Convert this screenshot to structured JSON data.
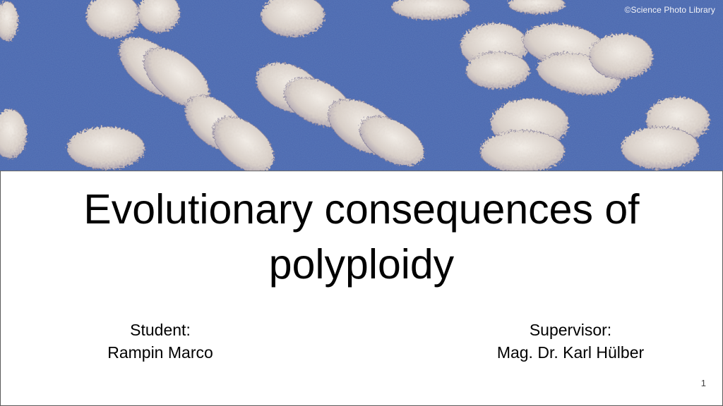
{
  "slide": {
    "image_credit": "©Science Photo Library",
    "image_subject": "chromosome-micrograph",
    "title": "Evolutionary consequences of polyploidy",
    "student": {
      "label": "Student:",
      "name": "Rampin Marco"
    },
    "supervisor": {
      "label": "Supervisor:",
      "name": "Mag. Dr. Karl Hülber"
    },
    "page_number": "1"
  },
  "colors": {
    "hero_background": "#5b78b8",
    "chromosome": "#e4ddd6",
    "text": "#000000"
  }
}
